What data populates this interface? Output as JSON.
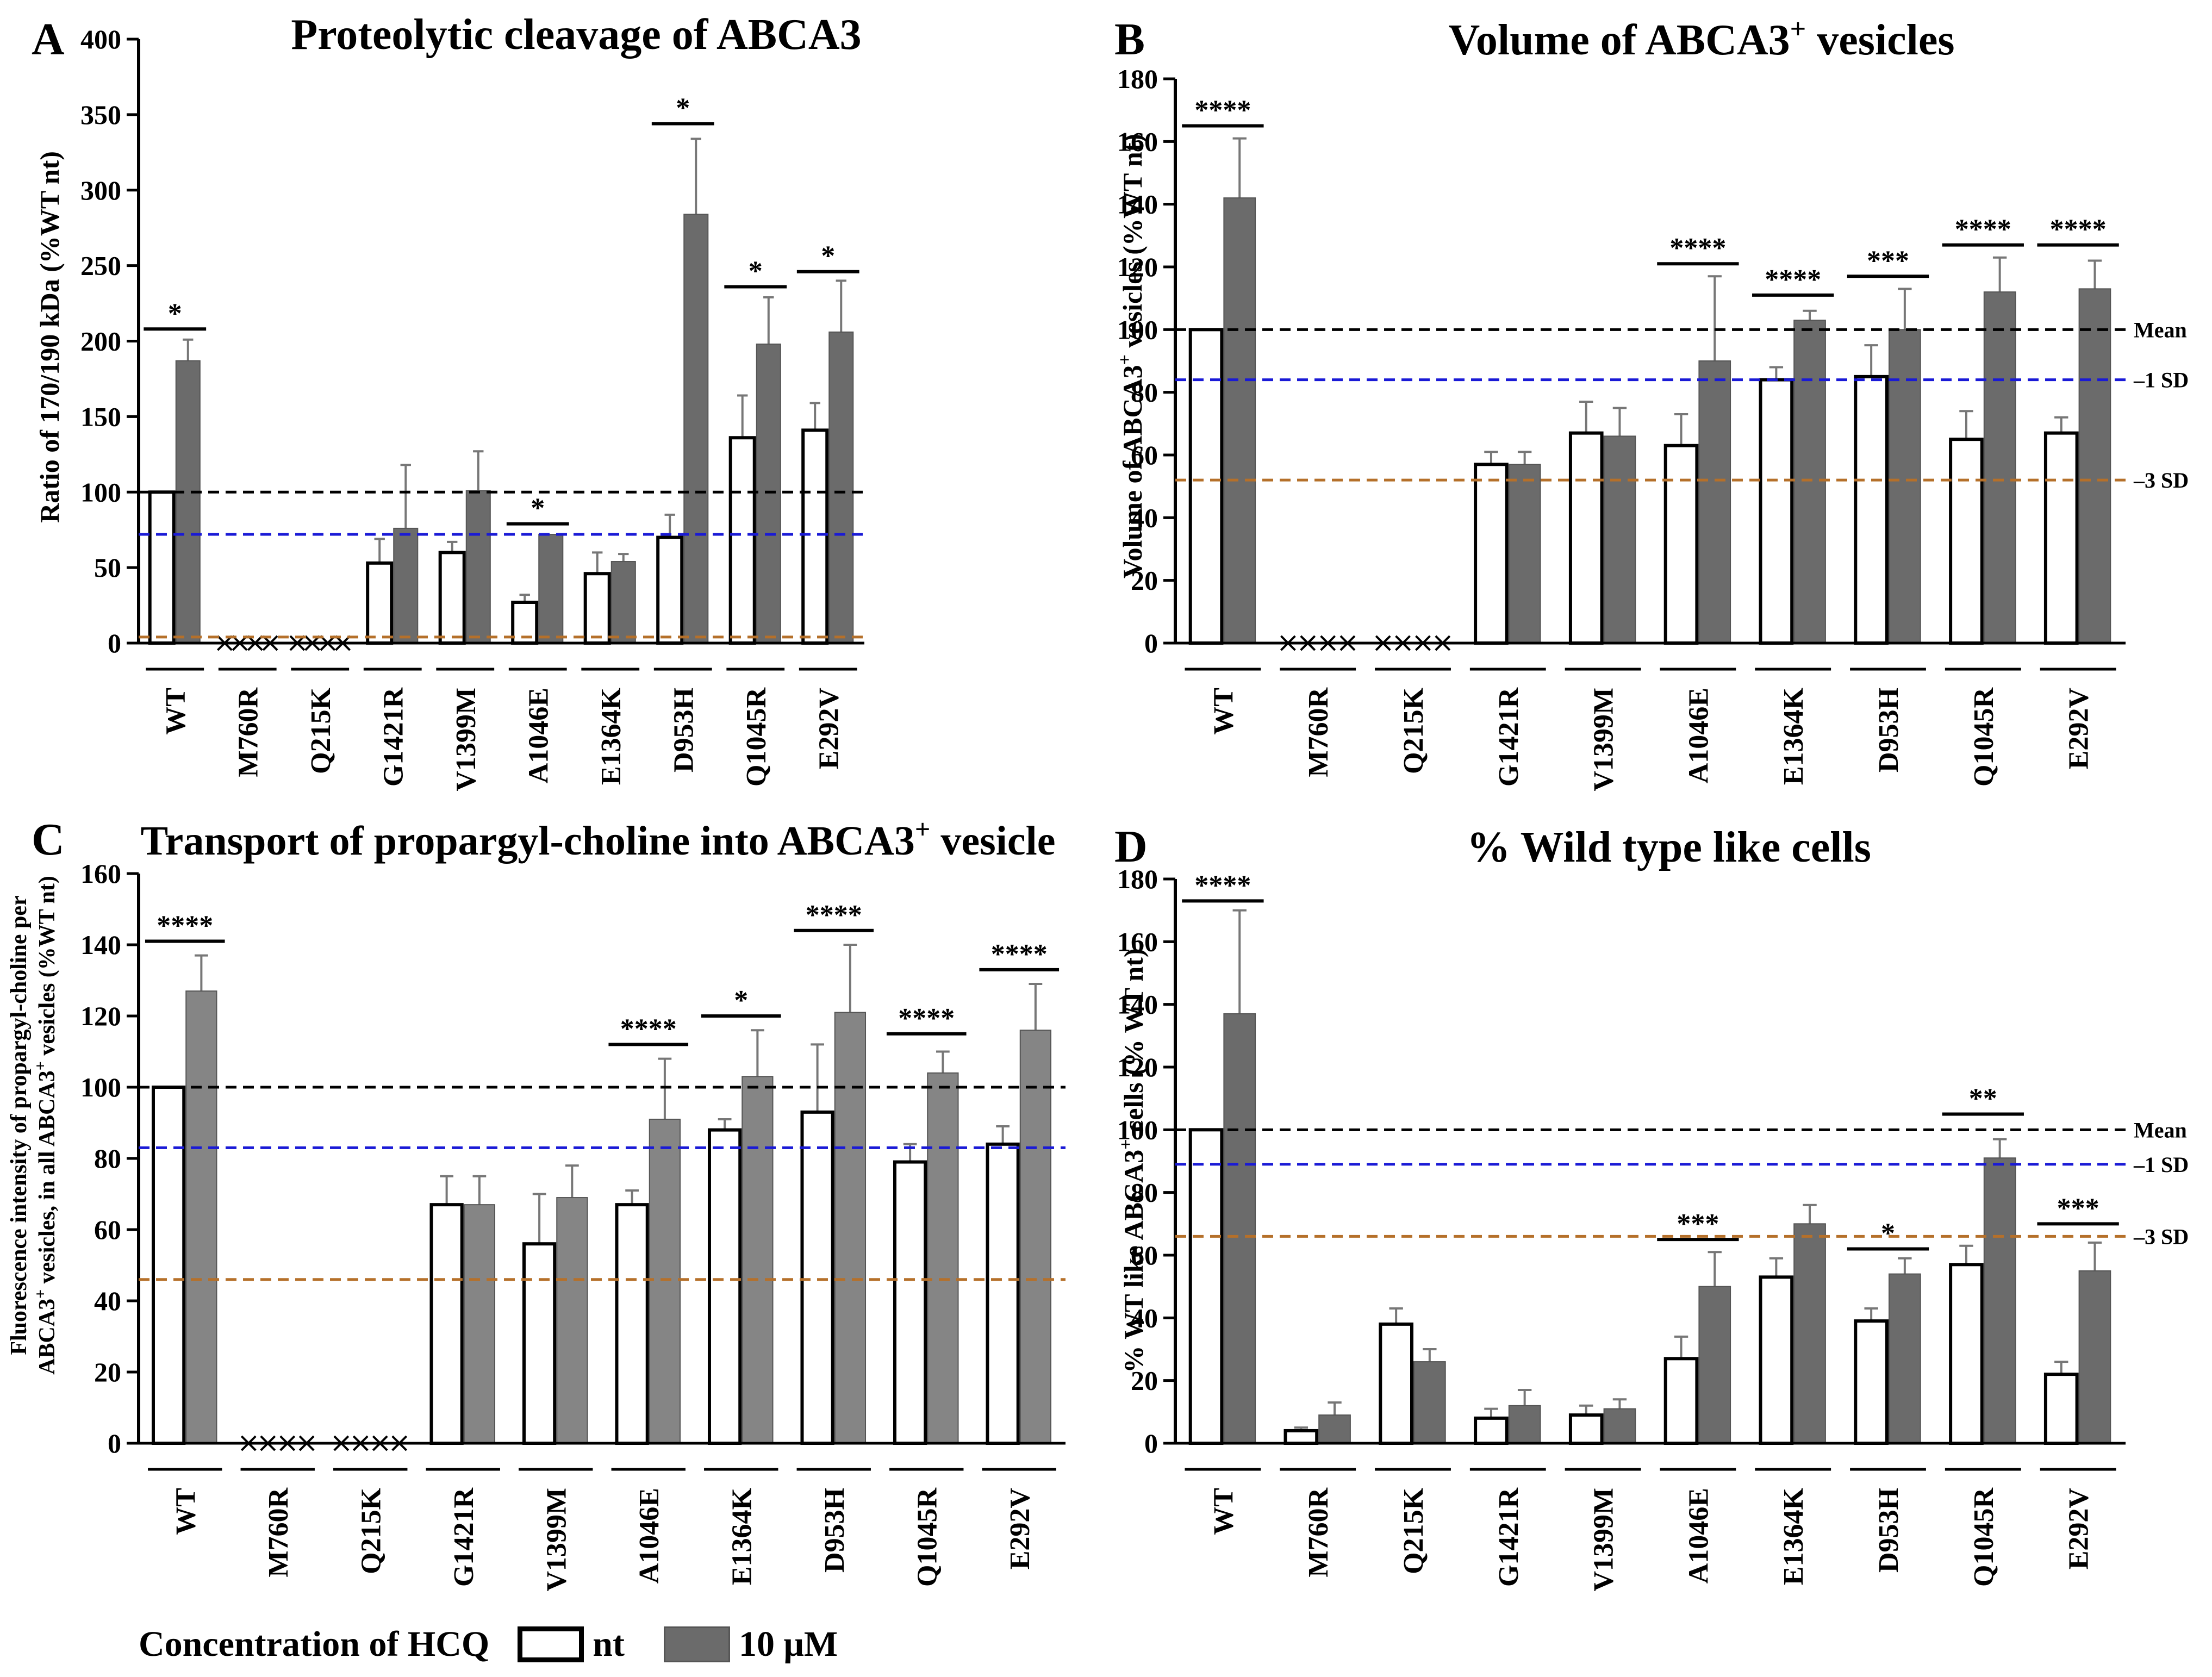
{
  "colors": {
    "nt": "#ffffff",
    "treated": "#6b6b6b",
    "treated_c": "#858585",
    "mean_line": "#000000",
    "sd1_line": "#1a1ad6",
    "sd3_line": "#b5702a",
    "bar_outline": "#000000"
  },
  "legend": {
    "title": "Concentration of HCQ",
    "nt_label": "nt",
    "treated_label": "10 μM"
  },
  "chart_data": [
    {
      "panel_letter": "A",
      "type": "bar",
      "title": "Proteolytic cleavage of ABCA3",
      "ylabel": "Ratio of 170/190 kDa (%WT nt)",
      "ylim": [
        0,
        400
      ],
      "ytick_step": 50,
      "categories": [
        "WT",
        "M760R",
        "Q215K",
        "G1421R",
        "V1399M",
        "A1046E",
        "E1364K",
        "D953H",
        "Q1045R",
        "E292V"
      ],
      "no_data_marks": [
        "M760R",
        "Q215K"
      ],
      "series": [
        {
          "name": "nt",
          "values": [
            100,
            0,
            0,
            53,
            60,
            27,
            46,
            70,
            136,
            141
          ],
          "errors": [
            0,
            0,
            0,
            16,
            7,
            5,
            14,
            15,
            28,
            18
          ]
        },
        {
          "name": "10 μM",
          "values": [
            187,
            0,
            0,
            76,
            101,
            72,
            54,
            284,
            198,
            206
          ],
          "errors": [
            14,
            0,
            0,
            42,
            26,
            0,
            5,
            50,
            31,
            34
          ]
        }
      ],
      "reference_lines": [
        {
          "value": 100,
          "color": "mean_line"
        },
        {
          "value": 72,
          "color": "sd1_line"
        },
        {
          "value": 4,
          "color": "sd3_line"
        }
      ],
      "significance": [
        {
          "category": "WT",
          "label": "*",
          "y": 208
        },
        {
          "category": "A1046E",
          "label": "*",
          "y": 79
        },
        {
          "category": "D953H",
          "label": "*",
          "y": 344
        },
        {
          "category": "Q1045R",
          "label": "*",
          "y": 236
        },
        {
          "category": "E292V",
          "label": "*",
          "y": 246
        }
      ]
    },
    {
      "panel_letter": "B",
      "type": "bar",
      "title": "Volume of ABCA3",
      "title_sup": "+",
      "title_suffix": " vesicles",
      "ylabel": "Volume of ABCA3",
      "ylabel_sup": "+",
      "ylabel_suffix": " vesicles (%WT nt)",
      "ylim": [
        0,
        180
      ],
      "ytick_step": 20,
      "categories": [
        "WT",
        "M760R",
        "Q215K",
        "G1421R",
        "V1399M",
        "A1046E",
        "E1364K",
        "D953H",
        "Q1045R",
        "E292V"
      ],
      "no_data_marks": [
        "M760R",
        "Q215K"
      ],
      "series": [
        {
          "name": "nt",
          "values": [
            100,
            0,
            0,
            57,
            67,
            63,
            84,
            85,
            65,
            67
          ],
          "errors": [
            0,
            0,
            0,
            4,
            10,
            10,
            4,
            10,
            9,
            5
          ]
        },
        {
          "name": "10 μM",
          "values": [
            142,
            0,
            0,
            57,
            66,
            90,
            103,
            100,
            112,
            113
          ],
          "errors": [
            19,
            0,
            0,
            4,
            9,
            27,
            3,
            13,
            11,
            9
          ]
        }
      ],
      "reference_lines": [
        {
          "value": 100,
          "color": "mean_line",
          "label": "Mean"
        },
        {
          "value": 84,
          "color": "sd1_line",
          "label": "–1 SD"
        },
        {
          "value": 52,
          "color": "sd3_line",
          "label": "–3 SD"
        }
      ],
      "significance": [
        {
          "category": "WT",
          "label": "****",
          "y": 165
        },
        {
          "category": "A1046E",
          "label": "****",
          "y": 121
        },
        {
          "category": "E1364K",
          "label": "****",
          "y": 111
        },
        {
          "category": "D953H",
          "label": "***",
          "y": 117
        },
        {
          "category": "Q1045R",
          "label": "****",
          "y": 127
        },
        {
          "category": "E292V",
          "label": "****",
          "y": 127
        }
      ]
    },
    {
      "panel_letter": "C",
      "type": "bar",
      "title": "Transport of propargyl-choline into ABCA3",
      "title_sup": "+",
      "title_suffix": " vesicle",
      "ylabel_line1": "Fluorescence intensity of propargyl-choline per",
      "ylabel_line2_a": "ABCA3",
      "ylabel_line2_b": " vesicles, in all ABCA3",
      "ylabel_line2_c": " vesicles (%WT nt)",
      "ylabel_sup": "+",
      "ylim": [
        0,
        160
      ],
      "ytick_step": 20,
      "categories": [
        "WT",
        "M760R",
        "Q215K",
        "G1421R",
        "V1399M",
        "A1046E",
        "E1364K",
        "D953H",
        "Q1045R",
        "E292V"
      ],
      "no_data_marks": [
        "M760R",
        "Q215K"
      ],
      "series": [
        {
          "name": "nt",
          "values": [
            100,
            0,
            0,
            67,
            56,
            67,
            88,
            93,
            79,
            84
          ],
          "errors": [
            0,
            0,
            0,
            8,
            14,
            4,
            3,
            19,
            5,
            5
          ]
        },
        {
          "name": "10 μM",
          "values": [
            127,
            0,
            0,
            67,
            69,
            91,
            103,
            121,
            104,
            116
          ],
          "errors": [
            10,
            0,
            0,
            8,
            9,
            17,
            13,
            19,
            6,
            13
          ]
        }
      ],
      "reference_lines": [
        {
          "value": 100,
          "color": "mean_line"
        },
        {
          "value": 83,
          "color": "sd1_line"
        },
        {
          "value": 46,
          "color": "sd3_line"
        }
      ],
      "significance": [
        {
          "category": "WT",
          "label": "****",
          "y": 141
        },
        {
          "category": "A1046E",
          "label": "****",
          "y": 112
        },
        {
          "category": "E1364K",
          "label": "*",
          "y": 120
        },
        {
          "category": "D953H",
          "label": "****",
          "y": 144
        },
        {
          "category": "Q1045R",
          "label": "****",
          "y": 115
        },
        {
          "category": "E292V",
          "label": "****",
          "y": 133
        }
      ]
    },
    {
      "panel_letter": "D",
      "type": "bar",
      "title": "% Wild type like cells",
      "ylabel": "% WT like ABCA3",
      "ylabel_sup": "+",
      "ylabel_suffix": " cells (% WT nt)",
      "ylim": [
        0,
        180
      ],
      "ytick_step": 20,
      "categories": [
        "WT",
        "M760R",
        "Q215K",
        "G1421R",
        "V1399M",
        "A1046E",
        "E1364K",
        "D953H",
        "Q1045R",
        "E292V"
      ],
      "series": [
        {
          "name": "nt",
          "values": [
            100,
            4,
            38,
            8,
            9,
            27,
            53,
            39,
            57,
            22
          ],
          "errors": [
            0,
            1,
            5,
            3,
            3,
            7,
            6,
            4,
            6,
            4
          ]
        },
        {
          "name": "10 μM",
          "values": [
            137,
            9,
            26,
            12,
            11,
            50,
            70,
            54,
            91,
            55
          ],
          "errors": [
            33,
            4,
            4,
            5,
            3,
            11,
            6,
            5,
            6,
            9
          ]
        }
      ],
      "reference_lines": [
        {
          "value": 100,
          "color": "mean_line",
          "label": "Mean"
        },
        {
          "value": 89,
          "color": "sd1_line",
          "label": "–1 SD"
        },
        {
          "value": 66,
          "color": "sd3_line",
          "label": "–3 SD"
        }
      ],
      "significance": [
        {
          "category": "WT",
          "label": "****",
          "y": 173
        },
        {
          "category": "A1046E",
          "label": "***",
          "y": 65
        },
        {
          "category": "D953H",
          "label": "*",
          "y": 62
        },
        {
          "category": "Q1045R",
          "label": "**",
          "y": 105
        },
        {
          "category": "E292V",
          "label": "***",
          "y": 70
        }
      ]
    }
  ]
}
